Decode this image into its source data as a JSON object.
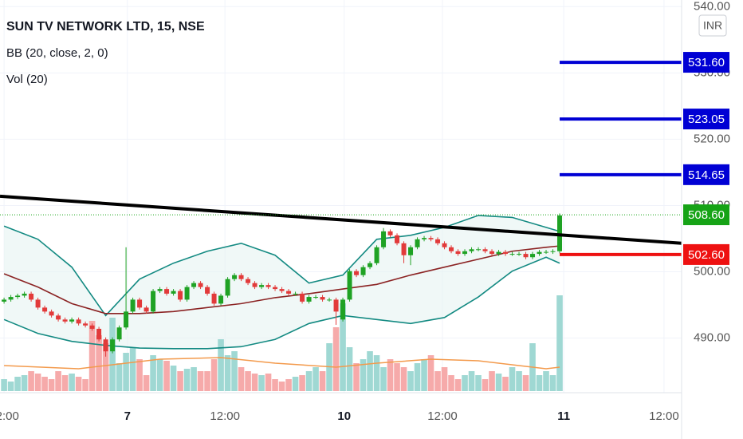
{
  "chart_data": {
    "type": "candlestick",
    "title": "SUN TV NETWORK LTD, 15, NSE",
    "bb_label": "BB (20, close, 2, 0)",
    "vol_label": "Vol (20)",
    "currency": "INR",
    "up_color": "#1fa224",
    "down_color": "#e23a3a",
    "x": [
      0,
      1,
      2,
      3,
      4,
      5,
      6,
      7,
      8,
      9,
      10,
      11,
      12,
      13,
      14,
      15,
      16,
      17,
      18,
      19,
      20,
      21,
      22,
      23,
      24,
      25,
      26,
      27,
      28,
      29,
      30,
      31,
      32,
      33,
      34,
      35,
      36,
      37,
      38,
      39,
      40,
      41,
      42,
      43,
      44,
      45,
      46,
      47,
      48,
      49,
      50,
      51,
      52,
      53,
      54,
      55,
      56,
      57,
      58,
      59,
      60,
      61,
      62,
      63,
      64,
      65,
      66,
      67,
      68,
      69,
      70,
      71,
      72,
      73,
      74,
      75,
      76,
      77,
      78,
      79,
      80,
      81,
      82
    ],
    "open": [
      495.5,
      495.8,
      496.2,
      496.4,
      496.7,
      495.8,
      494.6,
      494.0,
      493.4,
      492.8,
      492.5,
      492.8,
      492.2,
      491.9,
      491.4,
      489.8,
      488.0,
      489.8,
      491.6,
      494.0,
      495.8,
      494.6,
      494.0,
      497.1,
      497.4,
      496.7,
      497.1,
      495.8,
      497.7,
      498.3,
      497.7,
      496.7,
      495.2,
      496.4,
      498.9,
      499.5,
      498.9,
      498.3,
      497.7,
      498.0,
      497.7,
      497.4,
      497.1,
      496.7,
      496.7,
      495.5,
      496.2,
      496.2,
      495.8,
      495.8,
      492.8,
      495.8,
      500.1,
      499.5,
      500.7,
      501.3,
      503.7,
      506.1,
      505.5,
      504.3,
      502.5,
      503.7,
      504.9,
      505.1,
      504.9,
      504.3,
      503.7,
      503.1,
      502.7,
      503.1,
      503.4,
      503.4,
      503.1,
      502.7,
      503.0,
      502.7,
      502.7,
      502.7,
      502.2,
      502.7,
      503.0,
      503.0,
      503.1
    ],
    "high": [
      496.1,
      496.5,
      496.7,
      497.0,
      497.0,
      496.1,
      494.9,
      494.3,
      493.7,
      493.1,
      493.1,
      493.1,
      492.5,
      492.2,
      491.7,
      490.1,
      490.1,
      491.9,
      503.7,
      496.1,
      496.1,
      494.9,
      497.4,
      497.7,
      497.7,
      497.4,
      497.4,
      498.0,
      498.6,
      498.6,
      498.0,
      497.0,
      496.7,
      499.2,
      499.8,
      499.8,
      499.2,
      498.6,
      498.3,
      498.3,
      498.0,
      497.7,
      497.4,
      497.0,
      497.0,
      496.5,
      496.5,
      496.5,
      496.1,
      496.1,
      496.1,
      500.4,
      500.4,
      501.0,
      501.6,
      504.0,
      506.6,
      506.4,
      505.8,
      504.6,
      504.0,
      505.2,
      505.4,
      505.4,
      505.2,
      504.6,
      504.0,
      503.4,
      503.4,
      503.7,
      503.7,
      503.7,
      503.4,
      503.3,
      503.3,
      503.0,
      503.0,
      503.0,
      503.0,
      503.3,
      503.3,
      503.4,
      508.8
    ],
    "low": [
      495.2,
      495.5,
      495.9,
      496.1,
      495.5,
      494.3,
      493.7,
      493.1,
      492.5,
      492.2,
      492.2,
      491.9,
      491.6,
      491.1,
      489.5,
      487.2,
      487.7,
      489.5,
      491.3,
      493.7,
      494.3,
      493.7,
      493.7,
      496.8,
      496.4,
      496.4,
      495.5,
      495.5,
      497.4,
      497.4,
      496.4,
      494.9,
      494.9,
      496.1,
      498.6,
      498.6,
      498.0,
      497.4,
      497.4,
      497.4,
      497.1,
      496.8,
      496.4,
      496.4,
      495.2,
      495.2,
      495.9,
      495.5,
      495.5,
      492.0,
      492.5,
      495.5,
      499.2,
      499.2,
      500.4,
      501.0,
      503.4,
      505.2,
      504.0,
      501.3,
      501.0,
      503.4,
      504.6,
      504.6,
      504.0,
      503.4,
      502.8,
      502.4,
      502.4,
      502.8,
      503.1,
      502.8,
      502.4,
      502.4,
      502.4,
      502.4,
      502.4,
      501.9,
      501.9,
      502.4,
      502.7,
      502.7,
      502.8
    ],
    "close": [
      495.8,
      496.2,
      496.4,
      496.7,
      495.8,
      494.6,
      494.0,
      493.4,
      492.8,
      492.5,
      492.8,
      492.2,
      491.9,
      491.4,
      489.8,
      488.0,
      489.8,
      491.6,
      494.0,
      495.8,
      494.6,
      494.0,
      497.1,
      497.4,
      496.7,
      497.1,
      495.8,
      497.7,
      498.3,
      497.7,
      496.7,
      495.2,
      496.4,
      498.9,
      499.5,
      498.9,
      498.3,
      497.7,
      498.0,
      497.7,
      497.4,
      497.1,
      496.7,
      496.7,
      495.5,
      496.2,
      496.2,
      495.8,
      495.8,
      494.0,
      495.8,
      500.1,
      499.5,
      500.7,
      501.3,
      503.7,
      506.1,
      505.5,
      504.3,
      502.5,
      503.7,
      504.9,
      505.1,
      504.9,
      504.3,
      503.7,
      503.1,
      502.7,
      503.1,
      503.4,
      503.4,
      503.1,
      502.7,
      503.0,
      502.7,
      502.7,
      502.7,
      502.2,
      502.7,
      503.0,
      503.0,
      503.1,
      508.5
    ],
    "volume": {
      "up_color": "#9fd8d3",
      "down_color": "#f6aaaa",
      "lim": [
        0,
        125
      ],
      "values": [
        15,
        12,
        18,
        20,
        25,
        22,
        18,
        15,
        25,
        20,
        22,
        18,
        15,
        88,
        70,
        60,
        92,
        35,
        48,
        55,
        40,
        20,
        45,
        40,
        38,
        32,
        25,
        28,
        30,
        25,
        25,
        40,
        65,
        45,
        50,
        30,
        25,
        22,
        20,
        22,
        15,
        12,
        15,
        18,
        20,
        25,
        30,
        25,
        60,
        80,
        110,
        55,
        35,
        40,
        50,
        45,
        30,
        40,
        35,
        30,
        25,
        35,
        40,
        45,
        25,
        30,
        20,
        15,
        20,
        25,
        20,
        15,
        25,
        22,
        18,
        30,
        25,
        20,
        60,
        20,
        25,
        20,
        120
      ],
      "ma": {
        "color": "#f39a4c",
        "x": [
          0,
          11,
          15,
          23,
          32,
          40,
          49,
          55,
          63,
          70,
          76,
          80,
          82
        ],
        "values": [
          32,
          28,
          32,
          40,
          42,
          35,
          30,
          35,
          40,
          38,
          32,
          28,
          30
        ]
      }
    },
    "bollinger": {
      "fill": "#e6f3f2",
      "band_color": "#138a82",
      "basis_color": "#8b2323",
      "x": [
        0,
        5,
        10,
        15,
        20,
        25,
        30,
        35,
        40,
        45,
        50,
        55,
        60,
        65,
        70,
        75,
        80,
        82
      ],
      "upper": [
        506.9,
        504.9,
        500.7,
        493.4,
        498.9,
        501.3,
        503.1,
        504.3,
        502.5,
        498.3,
        499.5,
        504.9,
        505.5,
        506.7,
        508.5,
        508.2,
        506.7,
        506.1
      ],
      "basis": [
        499.7,
        497.7,
        495.2,
        493.7,
        493.7,
        494.0,
        494.6,
        495.2,
        496.1,
        496.7,
        497.4,
        498.1,
        499.5,
        500.7,
        501.9,
        503.1,
        503.7,
        503.9
      ],
      "lower": [
        492.8,
        490.7,
        489.5,
        488.9,
        488.5,
        488.4,
        488.4,
        488.7,
        489.8,
        492.2,
        493.4,
        492.8,
        492.2,
        493.1,
        496.2,
        500.1,
        502.2,
        501.3
      ]
    },
    "trendline": {
      "color": "#000000",
      "x": [
        -0.6,
        100
      ],
      "values": [
        511.4,
        504.3
      ]
    },
    "price_levels": [
      {
        "value": 531.6,
        "label": "531.60",
        "color": "#0000d4",
        "line": "solid"
      },
      {
        "value": 523.05,
        "label": "523.05",
        "color": "#0000d4",
        "line": "solid"
      },
      {
        "value": 514.65,
        "label": "514.65",
        "color": "#0000d4",
        "line": "solid"
      },
      {
        "value": 508.6,
        "label": "508.60",
        "color": "#16a316",
        "line": "dotted"
      },
      {
        "value": 502.6,
        "label": "502.60",
        "color": "#ee1111",
        "line": "solid"
      }
    ],
    "xlim": [
      -0.6,
      100
    ],
    "xticks": [
      {
        "value": 0,
        "label": "12:00"
      },
      {
        "value": 18.2,
        "label": "7"
      },
      {
        "value": 32.6,
        "label": "12:00"
      },
      {
        "value": 50.2,
        "label": "10"
      },
      {
        "value": 64.7,
        "label": "12:00"
      },
      {
        "value": 82.6,
        "label": "11"
      },
      {
        "value": 97.4,
        "label": "12:00"
      }
    ],
    "ylim": [
      482,
      541
    ],
    "yticks": [
      {
        "value": 540,
        "label": "540.00"
      },
      {
        "value": 530,
        "label": "530.00"
      },
      {
        "value": 520,
        "label": "520.00"
      },
      {
        "value": 510,
        "label": "510.00"
      },
      {
        "value": 500,
        "label": "500.00"
      },
      {
        "value": 490,
        "label": "490.00"
      }
    ],
    "grid": true
  }
}
